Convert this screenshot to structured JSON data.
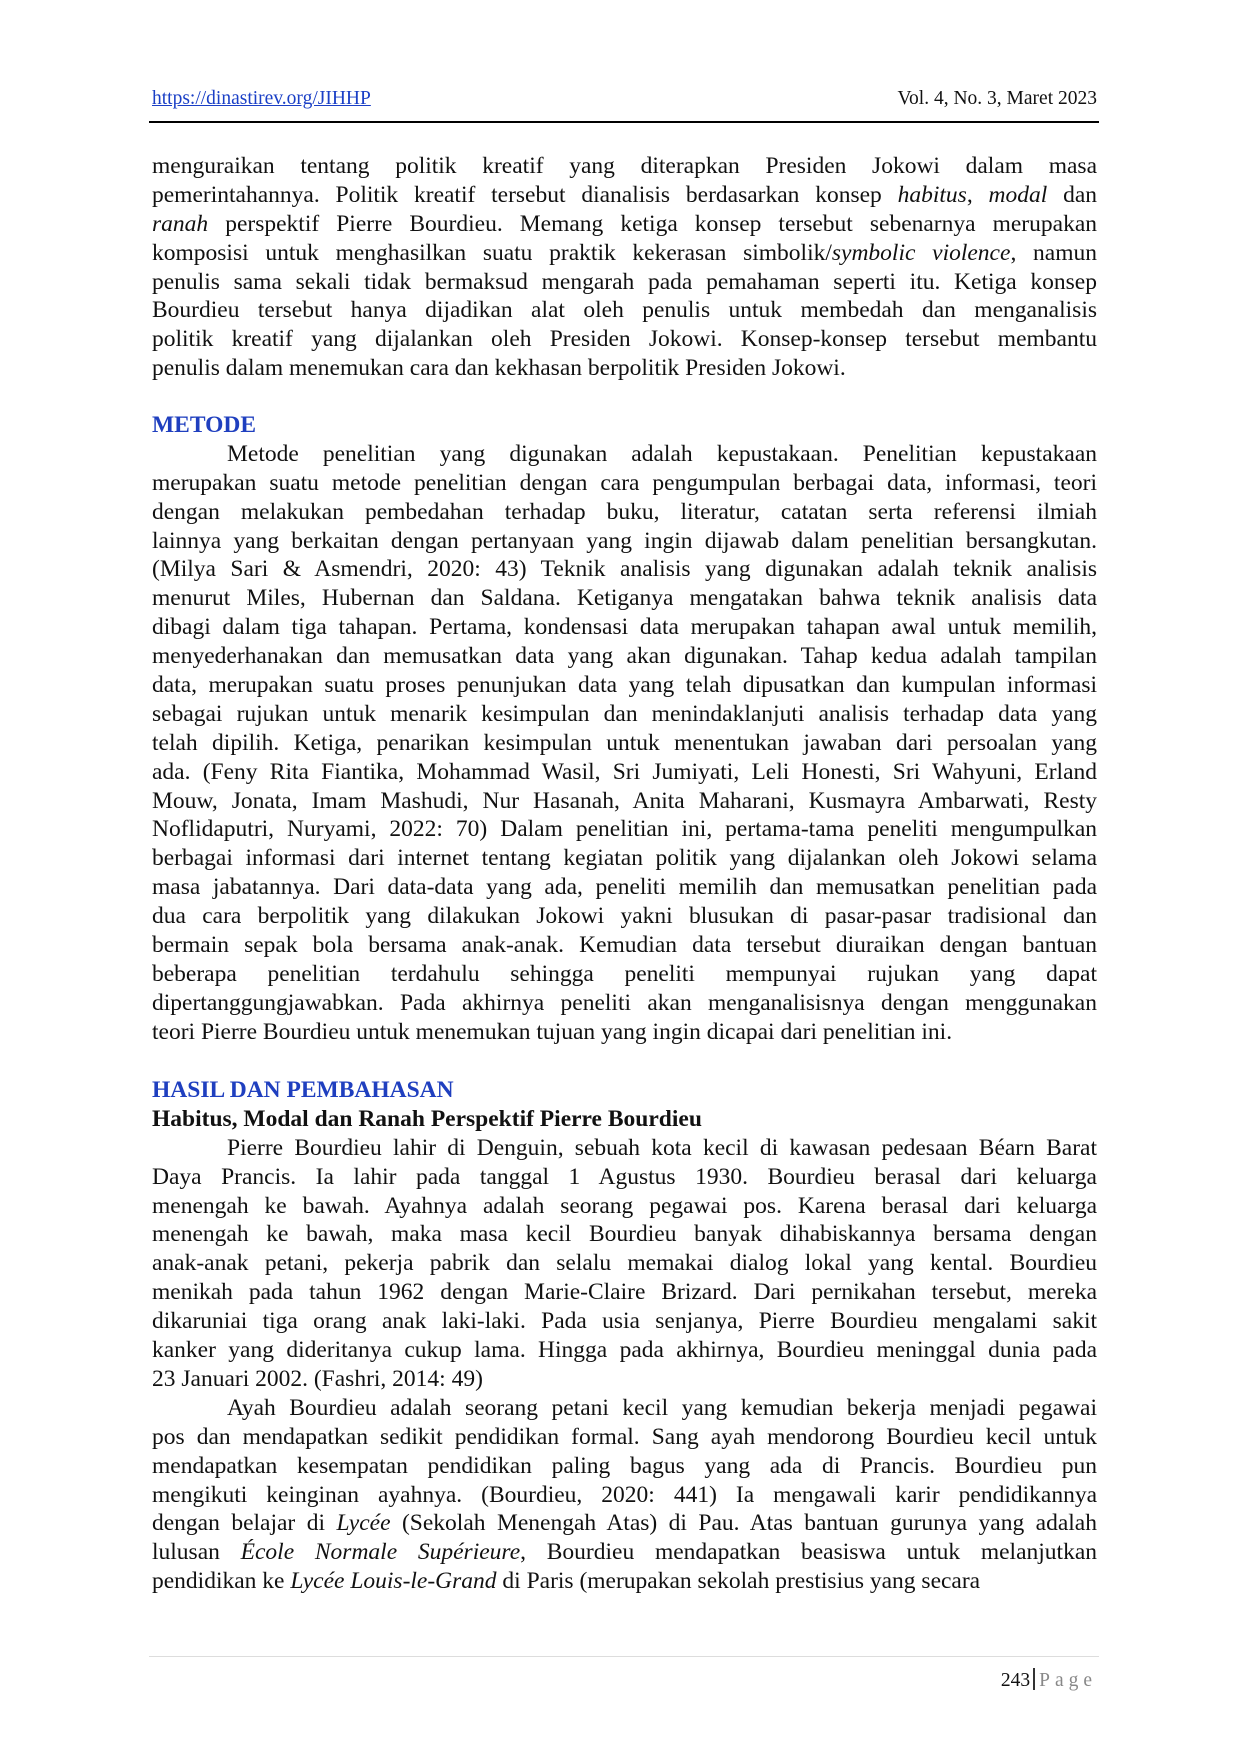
{
  "header": {
    "url": "https://dinastirev.org/JIHHP",
    "volume": "Vol. 4, No. 3, Maret 2023"
  },
  "sections": [
    {
      "heading": "",
      "subheading": "",
      "paragraphs": [
        {
          "indent": false,
          "lines": [
            [
              "menguraikan tentang politik kreatif yang diterapkan Presiden Jokowi dalam masa"
            ],
            [
              "pemerintahannya. Politik kreatif tersebut dianalisis berdasarkan konsep ",
              {
                "i": "habitus"
              },
              ", ",
              {
                "i": "modal"
              },
              " dan"
            ],
            [
              {
                "i": "ranah"
              },
              " perspektif Pierre Bourdieu. Memang ketiga konsep tersebut sebenarnya merupakan"
            ],
            [
              "komposisi untuk menghasilkan suatu praktik kekerasan simbolik/",
              {
                "i": "symbolic violence"
              },
              ", namun"
            ],
            [
              "penulis sama sekali tidak bermaksud mengarah pada pemahaman seperti itu. Ketiga konsep"
            ],
            [
              "Bourdieu tersebut hanya dijadikan alat oleh penulis untuk membedah dan menganalisis"
            ],
            [
              "politik kreatif yang dijalankan oleh Presiden Jokowi. Konsep-konsep tersebut membantu"
            ],
            [
              "penulis dalam menemukan cara dan kekhasan berpolitik Presiden Jokowi."
            ]
          ]
        }
      ]
    },
    {
      "heading": "METODE",
      "subheading": "",
      "paragraphs": [
        {
          "indent": true,
          "lines": [
            [
              "Metode penelitian yang digunakan adalah kepustakaan. Penelitian kepustakaan"
            ],
            [
              "merupakan suatu metode penelitian dengan cara pengumpulan berbagai data, informasi, teori"
            ],
            [
              "dengan melakukan pembedahan terhadap buku, literatur, catatan serta referensi ilmiah"
            ],
            [
              "lainnya yang berkaitan dengan pertanyaan yang ingin dijawab dalam penelitian bersangkutan."
            ],
            [
              "(Milya Sari & Asmendri, 2020: 43) Teknik analisis yang digunakan adalah teknik analisis"
            ],
            [
              "menurut Miles, Hubernan dan Saldana. Ketiganya mengatakan bahwa teknik analisis data"
            ],
            [
              "dibagi dalam tiga tahapan. Pertama, kondensasi data merupakan tahapan awal untuk memilih,"
            ],
            [
              "menyederhanakan dan memusatkan data yang akan digunakan. Tahap kedua adalah tampilan"
            ],
            [
              "data, merupakan suatu proses penunjukan data yang telah dipusatkan dan kumpulan informasi"
            ],
            [
              "sebagai rujukan untuk menarik kesimpulan dan menindaklanjuti analisis terhadap data yang"
            ],
            [
              "telah dipilih. Ketiga, penarikan kesimpulan untuk menentukan jawaban dari persoalan yang"
            ],
            [
              "ada. (Feny Rita Fiantika, Mohammad Wasil, Sri Jumiyati, Leli Honesti, Sri Wahyuni, Erland"
            ],
            [
              "Mouw, Jonata, Imam Mashudi, Nur Hasanah, Anita Maharani, Kusmayra Ambarwati, Resty"
            ],
            [
              "Noflidaputri, Nuryami, 2022: 70) Dalam penelitian ini, pertama-tama peneliti mengumpulkan"
            ],
            [
              "berbagai informasi dari internet tentang kegiatan politik yang dijalankan oleh Jokowi selama"
            ],
            [
              "masa jabatannya. Dari data-data yang ada, peneliti memilih dan memusatkan penelitian pada"
            ],
            [
              "dua cara berpolitik yang dilakukan Jokowi yakni blusukan di pasar-pasar tradisional dan"
            ],
            [
              "bermain sepak bola bersama anak-anak. Kemudian data tersebut diuraikan dengan bantuan"
            ],
            [
              "beberapa penelitian terdahulu sehingga peneliti mempunyai rujukan yang dapat"
            ],
            [
              "dipertanggungjawabkan. Pada akhirnya peneliti akan menganalisisnya dengan menggunakan"
            ],
            [
              "teori Pierre Bourdieu untuk menemukan tujuan yang ingin dicapai dari penelitian ini."
            ]
          ]
        }
      ]
    },
    {
      "heading": "HASIL DAN PEMBAHASAN",
      "subheading": "Habitus, Modal dan Ranah Perspektif Pierre Bourdieu",
      "paragraphs": [
        {
          "indent": true,
          "lines": [
            [
              "Pierre Bourdieu lahir di Denguin, sebuah kota kecil di kawasan pedesaan Béarn Barat"
            ],
            [
              "Daya Prancis. Ia lahir pada tanggal 1 Agustus 1930. Bourdieu berasal dari keluarga"
            ],
            [
              "menengah ke bawah. Ayahnya adalah seorang pegawai pos. Karena berasal dari keluarga"
            ],
            [
              "menengah ke bawah, maka masa kecil Bourdieu banyak dihabiskannya bersama dengan"
            ],
            [
              "anak-anak petani, pekerja pabrik dan selalu memakai dialog lokal yang kental. Bourdieu"
            ],
            [
              "menikah pada tahun 1962 dengan Marie-Claire Brizard. Dari pernikahan tersebut, mereka"
            ],
            [
              "dikaruniai tiga orang anak laki-laki. Pada usia senjanya, Pierre Bourdieu mengalami sakit"
            ],
            [
              "kanker yang dideritanya cukup lama. Hingga pada akhirnya, Bourdieu meninggal dunia pada"
            ],
            [
              "23 Januari 2002. (Fashri, 2014: 49)"
            ]
          ]
        },
        {
          "indent": true,
          "continues": true,
          "lines": [
            [
              "Ayah Bourdieu adalah seorang petani kecil yang kemudian bekerja menjadi pegawai"
            ],
            [
              "pos dan mendapatkan sedikit pendidikan formal. Sang ayah mendorong Bourdieu kecil untuk"
            ],
            [
              "mendapatkan kesempatan pendidikan paling bagus yang ada di Prancis. Bourdieu pun"
            ],
            [
              "mengikuti keinginan ayahnya. (Bourdieu, 2020: 441)  Ia mengawali karir pendidikannya"
            ],
            [
              "dengan belajar di ",
              {
                "i": "Lycée"
              },
              " (Sekolah Menengah Atas) di Pau. Atas bantuan gurunya yang adalah"
            ],
            [
              "lulusan ",
              {
                "i": "École Normale Supérieure"
              },
              ", Bourdieu mendapatkan beasiswa untuk melanjutkan"
            ],
            [
              "pendidikan ke ",
              {
                "i": "Lycée Louis-le-Grand"
              },
              " di Paris (merupakan sekolah prestisius yang secara"
            ]
          ]
        }
      ]
    }
  ],
  "footer": {
    "page_number": "243",
    "page_label": "Page"
  }
}
